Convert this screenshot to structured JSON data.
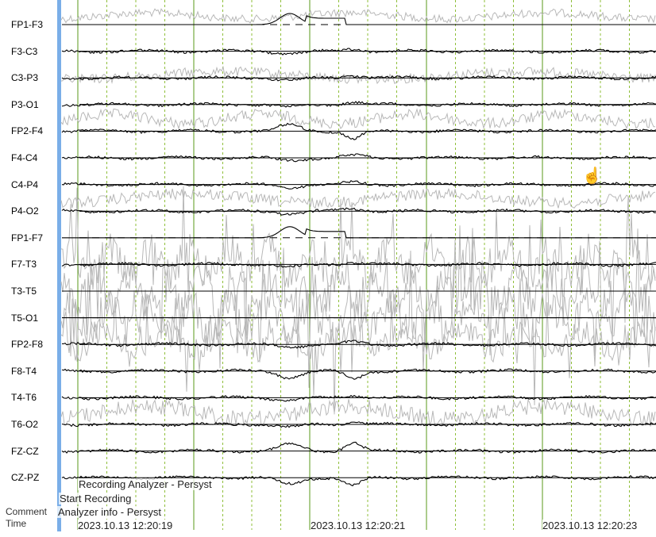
{
  "channels": [
    "FP1-F3",
    "F3-C3",
    "C3-P3",
    "P3-O1",
    "FP2-F4",
    "F4-C4",
    "C4-P4",
    "P4-O2",
    "FP1-F7",
    "F7-T3",
    "T3-T5",
    "T5-O1",
    "FP2-F8",
    "F8-T4",
    "T4-T6",
    "T6-O2",
    "FZ-CZ",
    "CZ-PZ"
  ],
  "dashed_channels": [
    "FP1-F3",
    "FP1-F7",
    "T3-T5",
    "T5-O1"
  ],
  "side_labels": {
    "comment": "Comment",
    "time": "Time"
  },
  "annotations": {
    "recording_analyzer": "Recording Analyzer - Persyst",
    "start_recording": "Start Recording",
    "analyzer_info": "Analyzer info - Persyst"
  },
  "timestamps": [
    "2023.10.13 12:20:19",
    "2023.10.13 12:20:21",
    "2023.10.13 12:20:23"
  ],
  "colors": {
    "trace": "#000000",
    "overlay_trace": "#b8b8b8",
    "second_line": "#5a9a1a",
    "sub_second_line": "#8fbf3a",
    "left_marker": "#7aaee8"
  },
  "cursor_icon": "hand-pointer-icon"
}
